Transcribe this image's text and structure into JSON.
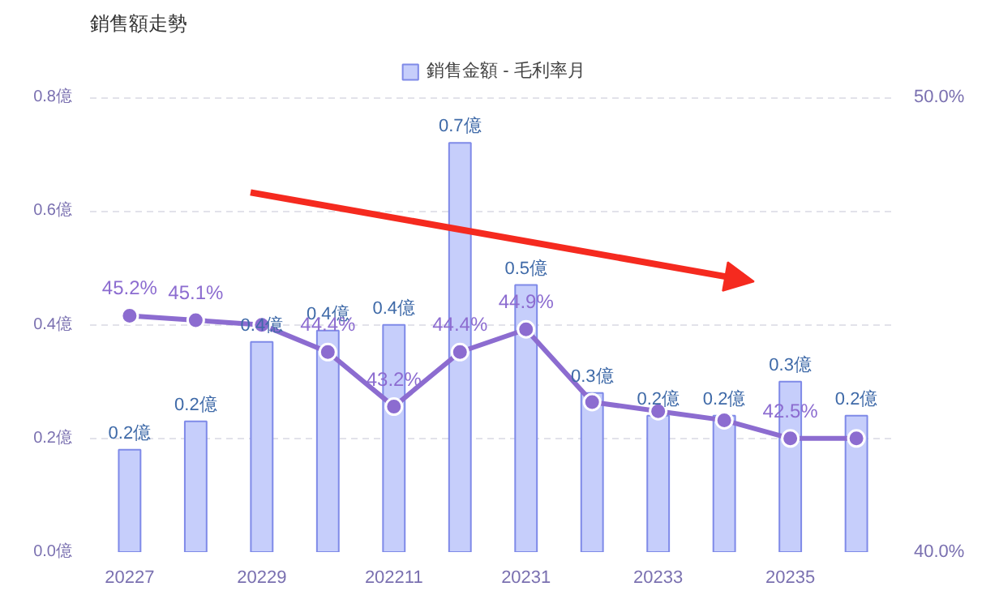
{
  "chart_data": {
    "type": "bar",
    "title": "銷售額走勢",
    "categories": [
      "20227",
      null,
      "20229",
      null,
      "202211",
      null,
      "20231",
      null,
      "20233",
      null,
      "20235",
      null
    ],
    "series": [
      {
        "name": "銷售金額 - 毛利率月",
        "color": "#c6cefb",
        "values": [
          0.18,
          0.23,
          0.37,
          0.39,
          0.4,
          0.72,
          0.47,
          0.28,
          0.24,
          0.24,
          0.3,
          0.24
        ],
        "value_labels": [
          "0.2億",
          "0.2億",
          "0.4億",
          "0.4億",
          "0.4億",
          "0.7億",
          "0.5億",
          "0.3億",
          "0.2億",
          "0.2億",
          "0.3億",
          "0.2億"
        ]
      },
      {
        "type": "line",
        "axis": "y2",
        "color": "#8c6cd0",
        "marker": "circle",
        "values": [
          45.2,
          45.1,
          45.0,
          44.4,
          43.2,
          44.4,
          44.9,
          43.3,
          43.1,
          42.9,
          42.5,
          42.5
        ],
        "value_labels": [
          "45.2%",
          "45.1%",
          null,
          "44.4%",
          "43.2%",
          "44.4%",
          "44.9%",
          null,
          null,
          null,
          "42.5%",
          null
        ]
      }
    ],
    "ylim": [
      0,
      0.8
    ],
    "yticks": [
      {
        "value": 0,
        "label": "0.0億"
      },
      {
        "value": 0.2,
        "label": "0.2億"
      },
      {
        "value": 0.4,
        "label": "0.4億"
      },
      {
        "value": 0.6,
        "label": "0.6億"
      },
      {
        "value": 0.8,
        "label": "0.8億"
      }
    ],
    "y2lim": [
      40,
      50
    ],
    "y2ticks": [
      {
        "value": 40,
        "label": "40.0%"
      },
      {
        "value": 50,
        "label": "50.0%"
      }
    ],
    "grid": "y",
    "legend": "top"
  }
}
